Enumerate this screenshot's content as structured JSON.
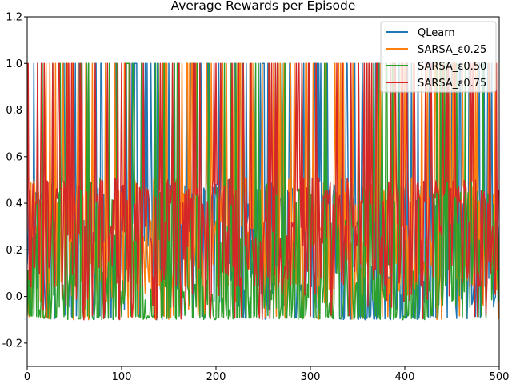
{
  "chart_data": {
    "type": "line",
    "title": "Average Rewards per Episode",
    "xlabel": "",
    "ylabel": "",
    "xlim": [
      0,
      500
    ],
    "ylim": [
      -0.3,
      1.2
    ],
    "xticks": [
      "0",
      "100",
      "200",
      "300",
      "400",
      "500"
    ],
    "yticks": [
      "-0.2",
      "0.0",
      "0.2",
      "0.4",
      "0.6",
      "0.8",
      "1.0",
      "1.2"
    ],
    "grid": false,
    "legend_position": "top-right",
    "value_levels": [
      -0.09,
      0.0,
      0.1,
      0.27,
      0.45,
      1.0
    ],
    "series": [
      {
        "name": "QLearn",
        "color": "#1f77b4"
      },
      {
        "name": "SARSA_ε0.25",
        "color": "#ff7f0e"
      },
      {
        "name": "SARSA_ε0.50",
        "color": "#2ca02c"
      },
      {
        "name": "SARSA_ε0.75",
        "color": "#d62728"
      }
    ]
  }
}
